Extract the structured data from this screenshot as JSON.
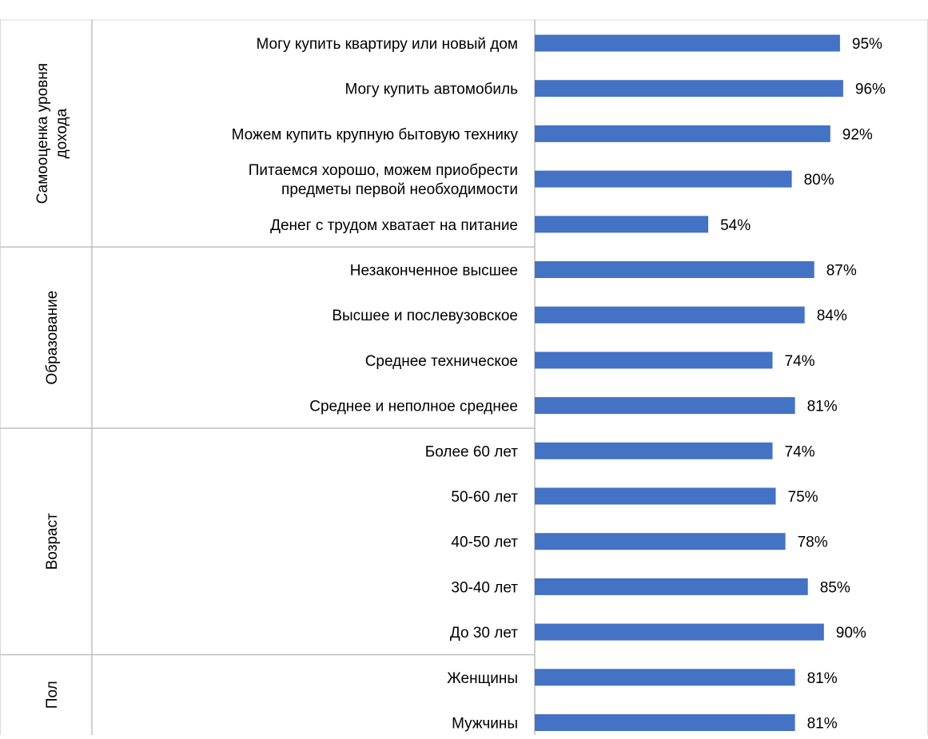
{
  "chart_data": {
    "type": "bar",
    "orientation": "horizontal",
    "bar_color": "#4472C4",
    "value_suffix": "%",
    "xlim": [
      0,
      100
    ],
    "grid": false,
    "groups": [
      {
        "name": "Самооценка уровня дохода",
        "items": [
          {
            "label": "Могу купить квартиру или новый дом",
            "value": 95
          },
          {
            "label": "Могу купить автомобиль",
            "value": 96
          },
          {
            "label": "Можем купить крупную бытовую технику",
            "value": 92
          },
          {
            "label": "Питаемся хорошо, можем приобрести предметы первой необходимости",
            "value": 80
          },
          {
            "label": "Денег с трудом хватает на питание",
            "value": 54
          }
        ]
      },
      {
        "name": "Образование",
        "items": [
          {
            "label": "Незаконченное высшее",
            "value": 87
          },
          {
            "label": "Высшее и послевузовское",
            "value": 84
          },
          {
            "label": "Среднее техническое",
            "value": 74
          },
          {
            "label": "Среднее и неполное среднее",
            "value": 81
          }
        ]
      },
      {
        "name": "Возраст",
        "items": [
          {
            "label": "Более 60 лет",
            "value": 74
          },
          {
            "label": "50-60 лет",
            "value": 75
          },
          {
            "label": "40-50 лет",
            "value": 78
          },
          {
            "label": "30-40 лет",
            "value": 85
          },
          {
            "label": "До 30 лет",
            "value": 90
          }
        ]
      },
      {
        "name": "Пол",
        "items": [
          {
            "label": "Женщины",
            "value": 81
          },
          {
            "label": "Мужчины",
            "value": 81
          }
        ]
      }
    ]
  }
}
